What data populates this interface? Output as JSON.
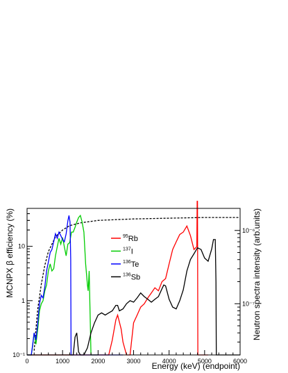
{
  "chart_data": {
    "type": "line",
    "title": "",
    "xlabel": "Energy (keV) (endpoint)",
    "ylabel_left": "MCNPX β efficiency (%)",
    "ylabel_right": "Neutron spectra intensity (arb.units)",
    "xlim": [
      0,
      6000
    ],
    "ylim_left": [
      0.1,
      50
    ],
    "yscale_left": "log",
    "ylim_right": [
      2e-08,
      2e-06
    ],
    "yscale_right": "log",
    "x_ticks": [
      "0",
      "1000",
      "2000",
      "3000",
      "4000",
      "5000",
      "6000"
    ],
    "y_ticks_left": [
      "10⁻¹",
      "1",
      "10"
    ],
    "y_ticks_right": [
      "10⁻⁷",
      "10⁻⁶"
    ],
    "grid": false,
    "legend_position": "center",
    "legend": [
      {
        "label": "Rb",
        "mass": "95",
        "color": "#ff0000"
      },
      {
        "label": "I",
        "mass": "137",
        "color": "#00cc00"
      },
      {
        "label": "Te",
        "mass": "136",
        "color": "#0000ff"
      },
      {
        "label": "Sb",
        "mass": "136",
        "color": "#000000"
      }
    ],
    "series": [
      {
        "name": "efficiency",
        "axis": "left",
        "color": "#000000",
        "style": "dashed",
        "x": [
          200,
          250,
          300,
          400,
          500,
          600,
          800,
          1000,
          1200,
          1500,
          2000,
          2500,
          3000,
          4000,
          5000,
          6000
        ],
        "y": [
          0.12,
          0.3,
          0.7,
          2.0,
          4.5,
          8.0,
          15,
          20,
          24,
          27,
          30,
          31,
          32,
          33,
          34,
          34
        ]
      },
      {
        "name": "Rb",
        "axis": "right",
        "color": "#ff0000",
        "style": "solid",
        "x": [
          0,
          2300,
          2400,
          2500,
          2550,
          2650,
          2700,
          2800,
          2900,
          3000,
          3100,
          3200,
          3300,
          3400,
          3500,
          3600,
          3700,
          3800,
          3900,
          4000,
          4100,
          4200,
          4300,
          4400,
          4500,
          4600,
          4700,
          4780,
          4790,
          4800,
          4810,
          4820,
          4850,
          4950,
          5100
        ],
        "y": [
          2e-08,
          2e-08,
          3.2e-08,
          6e-08,
          7e-08,
          4.5e-08,
          3e-08,
          2e-08,
          2e-08,
          5.5e-08,
          7e-08,
          9e-08,
          1e-07,
          1.2e-07,
          1.4e-07,
          1.65e-07,
          1.5e-07,
          2e-07,
          2.2e-07,
          3.5e-07,
          5.5e-07,
          7e-07,
          8.8e-07,
          9.5e-07,
          1.15e-06,
          8.5e-07,
          5.5e-07,
          6e-07,
          2.5e-06,
          2.5e-06,
          2e-08,
          2e-08,
          2e-08,
          2e-08,
          2e-08
        ]
      },
      {
        "name": "I",
        "axis": "right",
        "color": "#00cc00",
        "style": "solid",
        "x": [
          0,
          120,
          150,
          200,
          250,
          300,
          350,
          400,
          450,
          500,
          550,
          600,
          650,
          700,
          750,
          800,
          850,
          900,
          950,
          1000,
          1050,
          1100,
          1150,
          1200,
          1250,
          1300,
          1350,
          1400,
          1450,
          1500,
          1550,
          1600,
          1650,
          1700,
          1720,
          1750,
          1800,
          2000
        ],
        "y": [
          2e-08,
          2e-08,
          2.5e-08,
          4e-08,
          2.8e-08,
          4.5e-08,
          8e-08,
          1e-07,
          1.1e-07,
          1.5e-07,
          1.8e-07,
          2.8e-07,
          3.5e-07,
          2.8e-07,
          3e-07,
          4.5e-07,
          6e-07,
          7.8e-07,
          6.5e-07,
          8e-07,
          6e-07,
          4.5e-07,
          6.5e-07,
          6.8e-07,
          9.5e-07,
          9.5e-07,
          1.1e-06,
          1.3e-06,
          1.5e-06,
          1.6e-06,
          1.3e-06,
          9.5e-07,
          3.5e-07,
          1.8e-07,
          1.5e-07,
          2.8e-07,
          2e-08,
          2e-08
        ]
      },
      {
        "name": "Te",
        "axis": "right",
        "color": "#0000ff",
        "style": "solid",
        "x": [
          0,
          120,
          150,
          200,
          250,
          300,
          350,
          400,
          450,
          500,
          550,
          600,
          650,
          700,
          750,
          800,
          850,
          900,
          950,
          1000,
          1050,
          1100,
          1150,
          1180,
          1210,
          1230,
          1240,
          1300,
          2000,
          2700
        ],
        "y": [
          2e-08,
          2e-08,
          2.6e-08,
          4e-08,
          3.2e-08,
          5.5e-08,
          1e-07,
          1.3e-07,
          1.2e-07,
          1.7e-07,
          2.8e-07,
          3.7e-07,
          5e-07,
          5.5e-07,
          7e-07,
          9e-07,
          7.8e-07,
          9.5e-07,
          8.5e-07,
          7.5e-07,
          7e-07,
          9e-07,
          1.35e-06,
          1.6e-06,
          1.3e-06,
          4e-07,
          2e-08,
          2e-08,
          2e-08,
          2e-08
        ]
      },
      {
        "name": "Sb",
        "axis": "right",
        "color": "#000000",
        "style": "solid",
        "x": [
          0,
          1300,
          1350,
          1400,
          1450,
          1500,
          1550,
          1600,
          1700,
          1800,
          1900,
          2000,
          2100,
          2200,
          2300,
          2400,
          2500,
          2550,
          2600,
          2700,
          2800,
          2900,
          3000,
          3100,
          3200,
          3300,
          3400,
          3500,
          3600,
          3700,
          3800,
          3850,
          3900,
          4000,
          4100,
          4200,
          4300,
          4400,
          4500,
          4600,
          4700,
          4800,
          4900,
          5000,
          5100,
          5200,
          5250,
          5300,
          5320,
          5330,
          5400,
          6000
        ],
        "y": [
          2e-08,
          2e-08,
          3.5e-08,
          4e-08,
          2.2e-08,
          2e-08,
          2e-08,
          2e-08,
          2.5e-08,
          4e-08,
          5.5e-08,
          7e-08,
          7.5e-08,
          7e-08,
          7.5e-08,
          8e-08,
          9.5e-08,
          9.5e-08,
          8e-08,
          8.5e-08,
          1e-07,
          1.1e-07,
          1.05e-07,
          1.2e-07,
          1.4e-07,
          1.25e-07,
          1.15e-07,
          1.05e-07,
          1.15e-07,
          1.25e-07,
          1.6e-07,
          1.8e-07,
          1.75e-07,
          1.15e-07,
          9e-08,
          8.5e-08,
          1.1e-07,
          1.55e-07,
          2.8e-07,
          4e-07,
          4.8e-07,
          5.8e-07,
          5.5e-07,
          4.2e-07,
          3.8e-07,
          5.6e-07,
          7.5e-07,
          7.5e-07,
          2e-07,
          2e-08,
          2e-08,
          2e-08
        ]
      }
    ]
  }
}
